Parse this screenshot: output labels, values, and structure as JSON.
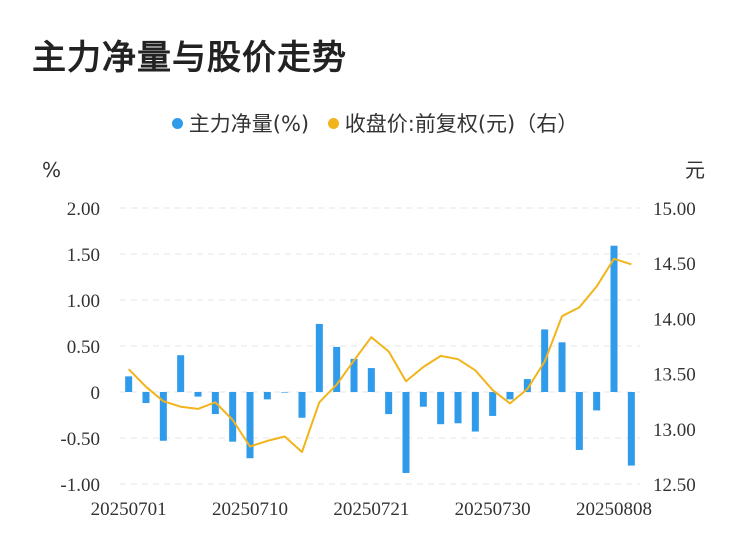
{
  "title": "主力净量与股价走势",
  "legend": {
    "bar_label": "主力净量(%)",
    "line_label": "收盘价:前复权(元)（右）"
  },
  "colors": {
    "bar": "#2f9bea",
    "line": "#f2b41b",
    "grid": "#e6e6e6"
  },
  "chart_data": {
    "type": "bar",
    "title": "主力净量与股价走势",
    "y_left_unit": "%",
    "y_right_unit": "元",
    "y_left_ticks": [
      "2.00",
      "1.50",
      "1.00",
      "0.50",
      "0",
      "-0.50",
      "-1.00"
    ],
    "y_right_ticks": [
      "15.00",
      "14.50",
      "14.00",
      "13.50",
      "13.00",
      "12.50"
    ],
    "ylim_left": [
      -1.0,
      2.0
    ],
    "ylim_right": [
      12.5,
      15.0
    ],
    "x_tick_labels": [
      "20250701",
      "20250710",
      "20250721",
      "20250730",
      "20250808"
    ],
    "x_tick_indices": [
      0,
      7,
      14,
      21,
      28
    ],
    "grid": true,
    "legend_position": "top-center",
    "series": [
      {
        "name": "主力净量(%)",
        "type": "bar",
        "axis": "left",
        "values": [
          0.17,
          -0.12,
          -0.53,
          0.4,
          -0.05,
          -0.24,
          -0.54,
          -0.72,
          -0.08,
          0.0,
          -0.28,
          0.74,
          0.49,
          0.36,
          0.26,
          -0.24,
          -0.88,
          -0.16,
          -0.35,
          -0.34,
          -0.43,
          -0.26,
          -0.08,
          0.14,
          0.68,
          0.54,
          -0.63,
          -0.2,
          1.59,
          -0.8
        ]
      },
      {
        "name": "收盘价:前复权(元)（右）",
        "type": "line",
        "axis": "right",
        "values": [
          13.54,
          13.38,
          13.25,
          13.2,
          13.18,
          13.24,
          13.08,
          12.84,
          12.89,
          12.93,
          12.79,
          13.24,
          13.4,
          13.62,
          13.83,
          13.7,
          13.43,
          13.56,
          13.66,
          13.63,
          13.53,
          13.35,
          13.23,
          13.36,
          13.61,
          14.02,
          14.1,
          14.29,
          14.54,
          14.49
        ]
      }
    ]
  }
}
